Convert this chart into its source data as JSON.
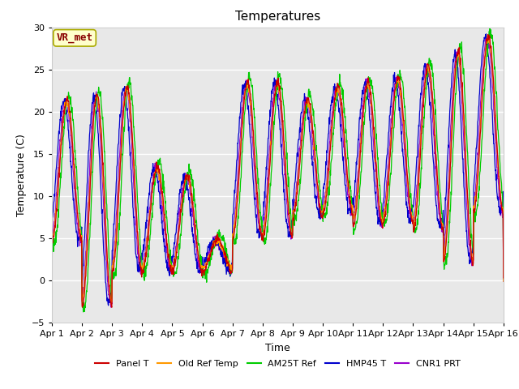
{
  "title": "Temperatures",
  "xlabel": "Time",
  "ylabel": "Temperature (C)",
  "ylim": [
    -5,
    30
  ],
  "xlim": [
    0,
    15
  ],
  "x_tick_labels": [
    "Apr 1",
    "Apr 2",
    "Apr 3",
    "Apr 4",
    "Apr 5",
    "Apr 6",
    "Apr 7",
    "Apr 8",
    "Apr 9",
    "Apr 10",
    "Apr 11",
    "Apr 12",
    "Apr 13",
    "Apr 14",
    "Apr 15",
    "Apr 16"
  ],
  "annotation_text": "VR_met",
  "annotation_bg": "#ffffcc",
  "annotation_border": "#aaaa00",
  "annotation_color": "#880000",
  "line_colors": {
    "Panel T": "#cc0000",
    "Old Ref Temp": "#ff9900",
    "AM25T Ref": "#00cc00",
    "HMP45 T": "#0000cc",
    "CNR1 PRT": "#9900cc"
  },
  "axes_bg": "#e8e8e8",
  "fig_bg": "#ffffff",
  "grid_color": "#ffffff",
  "title_fontsize": 11,
  "label_fontsize": 9,
  "tick_fontsize": 8,
  "legend_fontsize": 8
}
